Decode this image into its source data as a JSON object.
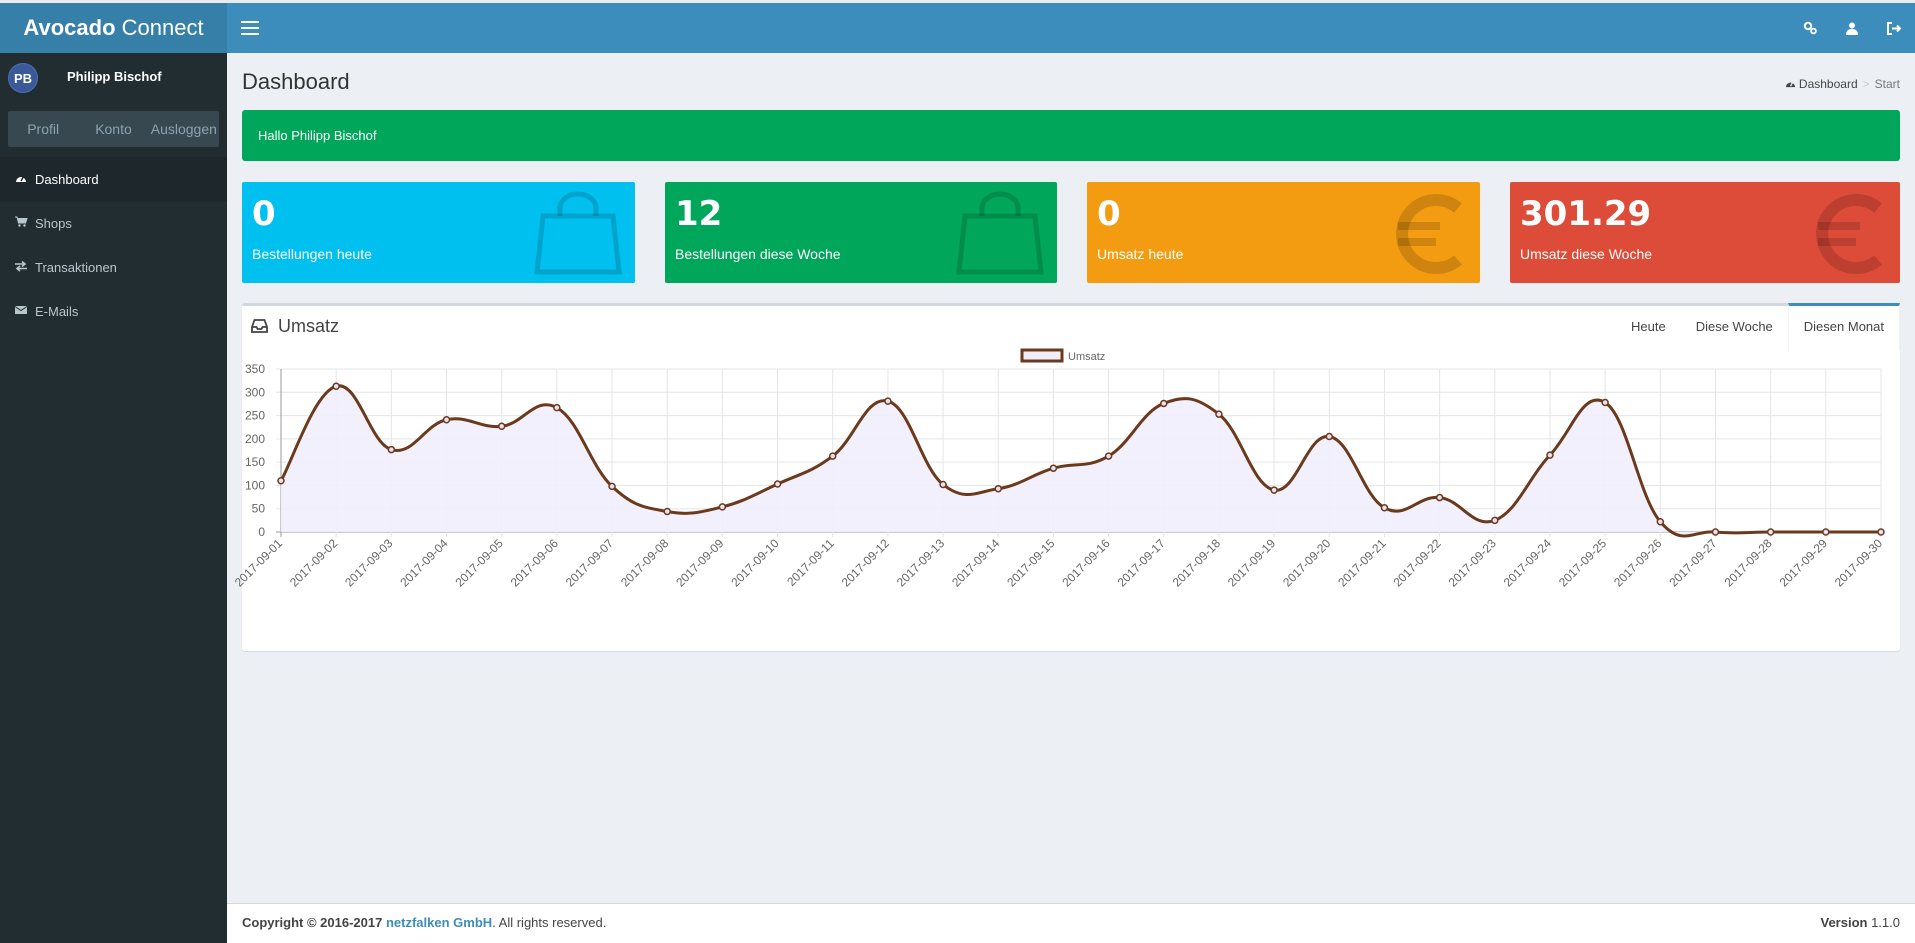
{
  "header": {
    "logo_bold": "Avocado",
    "logo_rest": " Connect"
  },
  "user": {
    "initials": "PB",
    "name": "Philipp Bischof",
    "buttons": [
      "Profil",
      "Konto",
      "Ausloggen"
    ]
  },
  "menu": [
    {
      "label": "Dashboard",
      "icon": "dashboard-icon"
    },
    {
      "label": "Shops",
      "icon": "cart-icon"
    },
    {
      "label": "Transaktionen",
      "icon": "exchange-icon"
    },
    {
      "label": "E-Mails",
      "icon": "envelope-icon"
    }
  ],
  "page": {
    "title": "Dashboard",
    "breadcrumb": [
      "Dashboard",
      "Start"
    ],
    "greeting": "Hallo Philipp Bischof"
  },
  "stats": [
    {
      "value": "0",
      "label": "Bestellungen heute",
      "color": "#00c0ef",
      "icon": "shopping-bag-icon"
    },
    {
      "value": "12",
      "label": "Bestellungen diese Woche",
      "color": "#00a65a",
      "icon": "shopping-bag-icon"
    },
    {
      "value": "0",
      "label": "Umsatz heute",
      "color": "#f39c12",
      "icon": "euro-icon"
    },
    {
      "value": "301.29",
      "label": "Umsatz diese Woche",
      "color": "#dd4b39",
      "icon": "euro-icon"
    }
  ],
  "chart_box": {
    "title": "Umsatz",
    "tabs": [
      "Heute",
      "Diese Woche",
      "Diesen Monat"
    ],
    "active_tab": "Diesen Monat"
  },
  "chart_data": {
    "type": "line",
    "legend": "Umsatz",
    "legend_position": "top",
    "line_color": "#6b3a1c",
    "fill_color": "#f1eefc",
    "ylim": [
      0,
      350
    ],
    "yticks": [
      0,
      50,
      100,
      150,
      200,
      250,
      300,
      350
    ],
    "grid": true,
    "x": [
      "2017-09-01",
      "2017-09-02",
      "2017-09-03",
      "2017-09-04",
      "2017-09-05",
      "2017-09-06",
      "2017-09-07",
      "2017-09-08",
      "2017-09-09",
      "2017-09-10",
      "2017-09-11",
      "2017-09-12",
      "2017-09-13",
      "2017-09-14",
      "2017-09-15",
      "2017-09-16",
      "2017-09-17",
      "2017-09-18",
      "2017-09-19",
      "2017-09-20",
      "2017-09-21",
      "2017-09-22",
      "2017-09-23",
      "2017-09-24",
      "2017-09-25",
      "2017-09-26",
      "2017-09-27",
      "2017-09-28",
      "2017-09-29",
      "2017-09-30"
    ],
    "series": [
      {
        "name": "Umsatz",
        "values": [
          110,
          313,
          177,
          241,
          227,
          267,
          98,
          44,
          54,
          103,
          163,
          281,
          102,
          93,
          137,
          163,
          276,
          253,
          90,
          205,
          52,
          74,
          25,
          165,
          278,
          22,
          0,
          0,
          0,
          0
        ]
      }
    ]
  },
  "footer": {
    "copyright_prefix": "Copyright © 2016-2017 ",
    "company": "netzfalken GmbH",
    "suffix": ". All rights reserved.",
    "version_label": "Version",
    "version": "1.1.0"
  }
}
